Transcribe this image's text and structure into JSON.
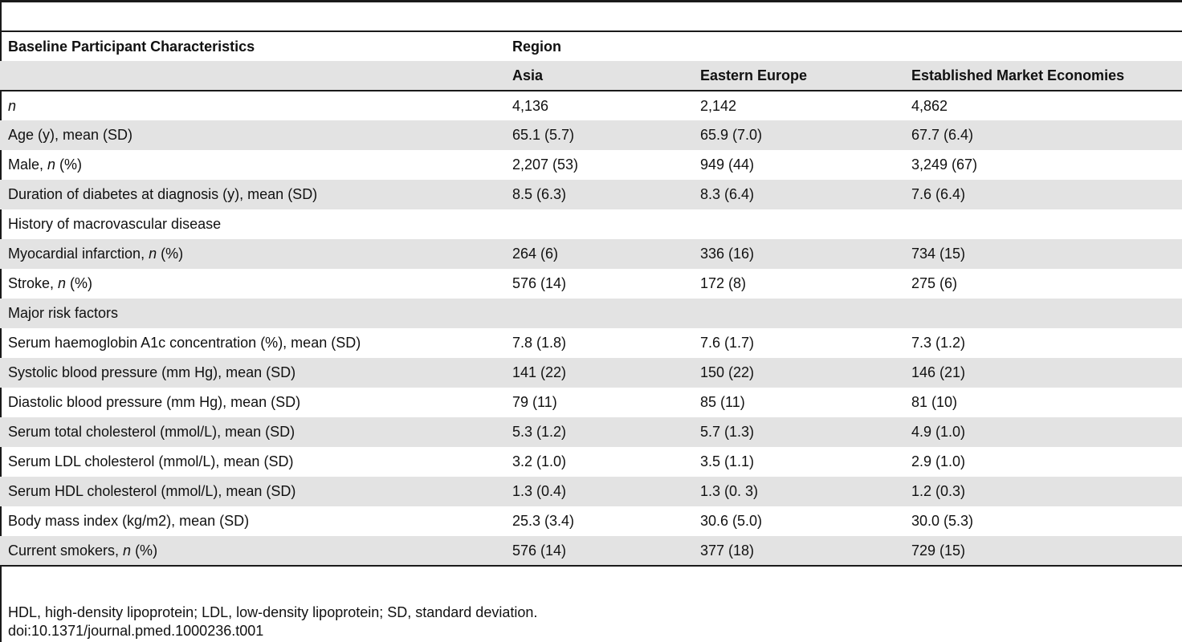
{
  "table": {
    "title_col": "Baseline Participant Characteristics",
    "group_header": "Region",
    "columns": [
      "Asia",
      "Eastern Europe",
      "Established Market Economies"
    ],
    "rows": [
      {
        "label": "n",
        "label_pre": "",
        "label_it": "n",
        "label_post": "",
        "values": [
          "4,136",
          "2,142",
          "4,862"
        ]
      },
      {
        "label_pre": "Age (y), mean (SD)",
        "label_it": "",
        "label_post": "",
        "values": [
          "65.1 (5.7)",
          "65.9 (7.0)",
          "67.7 (6.4)"
        ]
      },
      {
        "label_pre": "Male, ",
        "label_it": "n",
        "label_post": " (%)",
        "values": [
          "2,207 (53)",
          "949 (44)",
          "3,249 (67)"
        ]
      },
      {
        "label_pre": "Duration of diabetes at diagnosis (y), mean (SD)",
        "label_it": "",
        "label_post": "",
        "values": [
          "8.5 (6.3)",
          "8.3 (6.4)",
          "7.6 (6.4)"
        ]
      },
      {
        "label_pre": "History of macrovascular disease",
        "label_it": "",
        "label_post": "",
        "values": [
          "",
          "",
          ""
        ]
      },
      {
        "label_pre": "Myocardial infarction, ",
        "label_it": "n",
        "label_post": " (%)",
        "values": [
          "264 (6)",
          "336 (16)",
          "734 (15)"
        ]
      },
      {
        "label_pre": "Stroke, ",
        "label_it": "n",
        "label_post": " (%)",
        "values": [
          "576 (14)",
          "172 (8)",
          "275 (6)"
        ]
      },
      {
        "label_pre": "Major risk factors",
        "label_it": "",
        "label_post": "",
        "values": [
          "",
          "",
          ""
        ]
      },
      {
        "label_pre": "Serum haemoglobin A1c concentration (%), mean (SD)",
        "label_it": "",
        "label_post": "",
        "values": [
          "7.8 (1.8)",
          "7.6 (1.7)",
          "7.3 (1.2)"
        ]
      },
      {
        "label_pre": "Systolic blood pressure (mm Hg), mean (SD)",
        "label_it": "",
        "label_post": "",
        "values": [
          "141 (22)",
          "150 (22)",
          "146 (21)"
        ]
      },
      {
        "label_pre": "Diastolic blood pressure (mm Hg), mean (SD)",
        "label_it": "",
        "label_post": "",
        "values": [
          "79 (11)",
          "85 (11)",
          "81 (10)"
        ]
      },
      {
        "label_pre": "Serum total cholesterol (mmol/L), mean (SD)",
        "label_it": "",
        "label_post": "",
        "values": [
          "5.3 (1.2)",
          "5.7 (1.3)",
          "4.9 (1.0)"
        ]
      },
      {
        "label_pre": "Serum LDL cholesterol (mmol/L), mean (SD)",
        "label_it": "",
        "label_post": "",
        "values": [
          "3.2 (1.0)",
          "3.5 (1.1)",
          "2.9 (1.0)"
        ]
      },
      {
        "label_pre": "Serum HDL cholesterol (mmol/L), mean (SD)",
        "label_it": "",
        "label_post": "",
        "values": [
          "1.3 (0.4)",
          "1.3 (0. 3)",
          "1.2 (0.3)"
        ]
      },
      {
        "label_pre": "Body mass index (kg/m2), mean (SD)",
        "label_it": "",
        "label_post": "",
        "values": [
          "25.3 (3.4)",
          "30.6 (5.0)",
          "30.0 (5.3)"
        ]
      },
      {
        "label_pre": "Current smokers, ",
        "label_it": "n",
        "label_post": " (%)",
        "values": [
          "576 (14)",
          "377 (18)",
          "729 (15)"
        ]
      }
    ]
  },
  "footnote": {
    "abbreviations": "HDL, high-density lipoprotein; LDL, low-density lipoprotein; SD, standard deviation.",
    "doi": "doi:10.1371/journal.pmed.1000236.t001"
  }
}
